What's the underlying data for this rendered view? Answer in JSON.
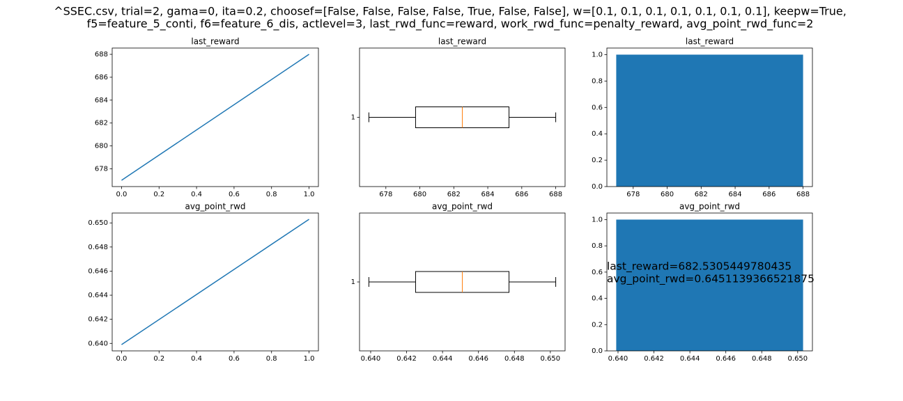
{
  "title": [
    "^SSEC.csv, trial=2, gama=0, ita=0.2, choosef=[False, False, False, False, True, False, False], w=[0.1, 0.1, 0.1, 0.1, 0.1, 0.1, 0.1], keepw=True,",
    "f5=feature_5_conti, f6=feature_6_dis, actlevel=3, last_rwd_func=reward, work_rwd_func=penalty_reward, avg_point_rwd_func=2"
  ],
  "chart_data": [
    {
      "type": "line",
      "title": "last_reward",
      "x": [
        0,
        1
      ],
      "series": [
        {
          "color": "#1f77b4",
          "values": [
            677,
            688
          ]
        }
      ],
      "xlim": [
        -0.05,
        1.05
      ],
      "xticks": [
        {
          "value": 0,
          "label": "0.0"
        },
        {
          "value": 0.2,
          "label": "0.2"
        },
        {
          "value": 0.4,
          "label": "0.4"
        },
        {
          "value": 0.6,
          "label": "0.6"
        },
        {
          "value": 0.8,
          "label": "0.8"
        },
        {
          "value": 1,
          "label": "1.0"
        }
      ],
      "ylim": [
        676.45,
        688.55
      ],
      "yticks": [
        678,
        680,
        682,
        684,
        686,
        688
      ]
    },
    {
      "type": "box",
      "title": "last_reward",
      "categories": [
        "1"
      ],
      "box": {
        "min": 677,
        "q1": 679.75,
        "median": 682.5,
        "q3": 685.25,
        "max": 688
      },
      "color": "#000000",
      "median_color": "#ff7f0e",
      "xlim": [
        676.45,
        688.55
      ],
      "xticks": [
        678,
        680,
        682,
        684,
        686,
        688
      ]
    },
    {
      "type": "histogram",
      "title": "last_reward",
      "bins": [
        677,
        688
      ],
      "values": [
        1
      ],
      "color": "#1f77b4",
      "xlim": [
        676.45,
        688.55
      ],
      "xticks": [
        678,
        680,
        682,
        684,
        686,
        688
      ],
      "ylim": [
        0,
        1.05
      ],
      "yticks": [
        {
          "value": 0,
          "label": "0.0"
        },
        {
          "value": 0.2,
          "label": "0.2"
        },
        {
          "value": 0.4,
          "label": "0.4"
        },
        {
          "value": 0.6,
          "label": "0.6"
        },
        {
          "value": 0.8,
          "label": "0.8"
        },
        {
          "value": 1,
          "label": "1.0"
        }
      ]
    },
    {
      "type": "line",
      "title": "avg_point_rwd",
      "x": [
        0,
        1
      ],
      "series": [
        {
          "color": "#1f77b4",
          "values": [
            0.6399,
            0.6503
          ]
        }
      ],
      "xlim": [
        -0.05,
        1.05
      ],
      "xticks": [
        {
          "value": 0,
          "label": "0.0"
        },
        {
          "value": 0.2,
          "label": "0.2"
        },
        {
          "value": 0.4,
          "label": "0.4"
        },
        {
          "value": 0.6,
          "label": "0.6"
        },
        {
          "value": 0.8,
          "label": "0.8"
        },
        {
          "value": 1,
          "label": "1.0"
        }
      ],
      "ylim": [
        0.63938,
        0.65082
      ],
      "yticks": [
        {
          "value": 0.64,
          "label": "0.640"
        },
        {
          "value": 0.642,
          "label": "0.642"
        },
        {
          "value": 0.644,
          "label": "0.644"
        },
        {
          "value": 0.646,
          "label": "0.646"
        },
        {
          "value": 0.648,
          "label": "0.648"
        },
        {
          "value": 0.65,
          "label": "0.650"
        }
      ]
    },
    {
      "type": "box",
      "title": "avg_point_rwd",
      "categories": [
        "1"
      ],
      "box": {
        "min": 0.6399,
        "q1": 0.6425,
        "median": 0.6451,
        "q3": 0.6477,
        "max": 0.6503
      },
      "color": "#000000",
      "median_color": "#ff7f0e",
      "xlim": [
        0.63938,
        0.65082
      ],
      "xticks": [
        {
          "value": 0.64,
          "label": "0.640"
        },
        {
          "value": 0.642,
          "label": "0.642"
        },
        {
          "value": 0.644,
          "label": "0.644"
        },
        {
          "value": 0.646,
          "label": "0.646"
        },
        {
          "value": 0.648,
          "label": "0.648"
        },
        {
          "value": 0.65,
          "label": "0.650"
        }
      ]
    },
    {
      "type": "histogram",
      "title": "avg_point_rwd",
      "bins": [
        0.6399,
        0.6503
      ],
      "values": [
        1
      ],
      "color": "#1f77b4",
      "xlim": [
        0.63938,
        0.65082
      ],
      "xticks": [
        {
          "value": 0.64,
          "label": "0.640"
        },
        {
          "value": 0.642,
          "label": "0.642"
        },
        {
          "value": 0.644,
          "label": "0.644"
        },
        {
          "value": 0.646,
          "label": "0.646"
        },
        {
          "value": 0.648,
          "label": "0.648"
        },
        {
          "value": 0.65,
          "label": "0.650"
        }
      ],
      "ylim": [
        0,
        1.05
      ],
      "yticks": [
        {
          "value": 0,
          "label": "0.0"
        },
        {
          "value": 0.2,
          "label": "0.2"
        },
        {
          "value": 0.4,
          "label": "0.4"
        },
        {
          "value": 0.6,
          "label": "0.6"
        },
        {
          "value": 0.8,
          "label": "0.8"
        },
        {
          "value": 1,
          "label": "1.0"
        }
      ],
      "annotations": [
        "last_reward=682.5305449780435",
        "avg_point_rwd=0.6451139366521875"
      ]
    }
  ]
}
